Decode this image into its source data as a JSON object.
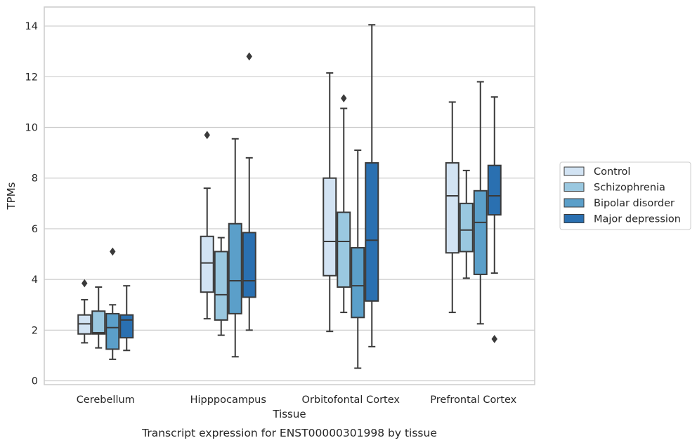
{
  "chart_data": {
    "type": "box",
    "title": "",
    "caption": "Transcript expression for ENST00000301998 by tissue",
    "xlabel": "Tissue",
    "ylabel": "TPMs",
    "ylim": [
      -0.15,
      14.75
    ],
    "yticks": [
      0,
      2,
      4,
      6,
      8,
      10,
      12,
      14
    ],
    "grid": "horizontal",
    "legend_position": "right",
    "categories": [
      "Cerebellum",
      "Hipppocampus",
      "Orbitofontal Cortex",
      "Prefrontal Cortex"
    ],
    "series": [
      {
        "name": "Control",
        "color": "#d2e3f3",
        "boxes": [
          {
            "whisker_low": 1.5,
            "q1": 1.85,
            "median": 2.25,
            "q3": 2.6,
            "whisker_high": 3.2,
            "outliers": [
              3.85
            ]
          },
          {
            "whisker_low": 2.45,
            "q1": 3.5,
            "median": 4.65,
            "q3": 5.7,
            "whisker_high": 7.6,
            "outliers": [
              9.7
            ]
          },
          {
            "whisker_low": 1.95,
            "q1": 4.15,
            "median": 5.5,
            "q3": 8.0,
            "whisker_high": 12.15,
            "outliers": []
          },
          {
            "whisker_low": 2.7,
            "q1": 5.05,
            "median": 7.3,
            "q3": 8.6,
            "whisker_high": 11.0,
            "outliers": []
          }
        ]
      },
      {
        "name": "Schizophrenia",
        "color": "#9ac8e0",
        "boxes": [
          {
            "whisker_low": 1.3,
            "q1": 1.85,
            "median": 1.9,
            "q3": 2.75,
            "whisker_high": 3.7,
            "outliers": []
          },
          {
            "whisker_low": 1.8,
            "q1": 2.4,
            "median": 3.4,
            "q3": 5.1,
            "whisker_high": 5.65,
            "outliers": []
          },
          {
            "whisker_low": 2.7,
            "q1": 3.7,
            "median": 5.5,
            "q3": 6.65,
            "whisker_high": 10.75,
            "outliers": [
              11.15
            ]
          },
          {
            "whisker_low": 4.05,
            "q1": 5.1,
            "median": 5.95,
            "q3": 7.0,
            "whisker_high": 8.3,
            "outliers": []
          }
        ]
      },
      {
        "name": "Bipolar disorder",
        "color": "#5b9fc9",
        "boxes": [
          {
            "whisker_low": 0.85,
            "q1": 1.25,
            "median": 2.1,
            "q3": 2.65,
            "whisker_high": 3.0,
            "outliers": [
              5.1
            ]
          },
          {
            "whisker_low": 0.95,
            "q1": 2.65,
            "median": 3.95,
            "q3": 6.2,
            "whisker_high": 9.55,
            "outliers": []
          },
          {
            "whisker_low": 0.5,
            "q1": 2.5,
            "median": 3.75,
            "q3": 5.25,
            "whisker_high": 9.1,
            "outliers": []
          },
          {
            "whisker_low": 2.25,
            "q1": 4.2,
            "median": 6.25,
            "q3": 7.5,
            "whisker_high": 11.8,
            "outliers": []
          }
        ]
      },
      {
        "name": "Major depression",
        "color": "#2a70b1",
        "boxes": [
          {
            "whisker_low": 1.2,
            "q1": 1.7,
            "median": 2.4,
            "q3": 2.6,
            "whisker_high": 3.75,
            "outliers": []
          },
          {
            "whisker_low": 2.0,
            "q1": 3.3,
            "median": 3.95,
            "q3": 5.85,
            "whisker_high": 8.8,
            "outliers": [
              12.8
            ]
          },
          {
            "whisker_low": 1.35,
            "q1": 3.15,
            "median": 5.55,
            "q3": 8.6,
            "whisker_high": 14.05,
            "outliers": []
          },
          {
            "whisker_low": 4.25,
            "q1": 6.55,
            "median": 7.3,
            "q3": 8.5,
            "whisker_high": 11.2,
            "outliers": [
              1.65
            ]
          }
        ]
      }
    ]
  }
}
